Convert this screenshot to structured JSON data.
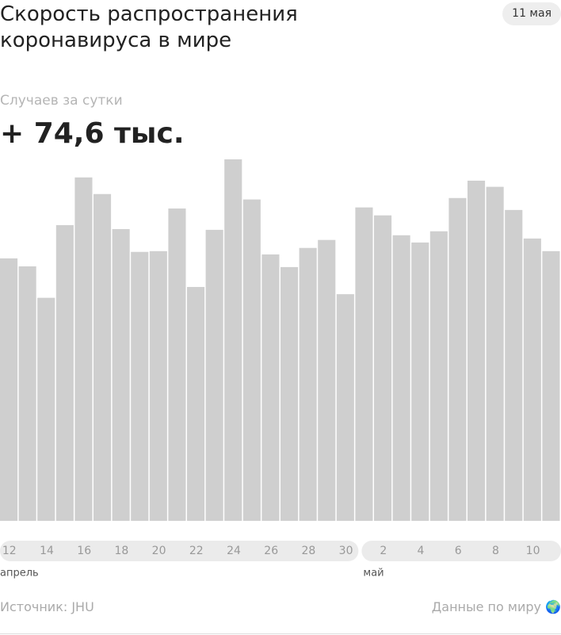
{
  "chart_data": {
    "type": "bar",
    "title": "Скорость распространения коронавируса в мире",
    "date": "11 мая",
    "subtitle": "Случаев за сутки",
    "headline": "+ 74,6 тыс.",
    "categories": [
      "12",
      null,
      "14",
      null,
      "16",
      null,
      "18",
      null,
      "20",
      null,
      "22",
      null,
      "24",
      null,
      "26",
      null,
      "28",
      null,
      "30",
      null,
      "2",
      null,
      "4",
      null,
      "6",
      null,
      "8",
      null,
      "10",
      null
    ],
    "values": [
      72.6,
      70.4,
      61.7,
      81.8,
      95.0,
      90.4,
      80.7,
      74.4,
      74.6,
      86.4,
      64.7,
      80.5,
      100.0,
      88.9,
      73.7,
      70.2,
      75.5,
      77.7,
      62.7,
      86.7,
      84.5,
      79.0,
      77.0,
      80.1,
      89.3,
      94.1,
      92.4,
      86.0,
      78.1,
      74.6
    ],
    "color": "#cfcfcf",
    "months": [
      "апрель",
      "май"
    ],
    "source": "Источник: JHU",
    "link": "Данные по миру 🌍"
  }
}
